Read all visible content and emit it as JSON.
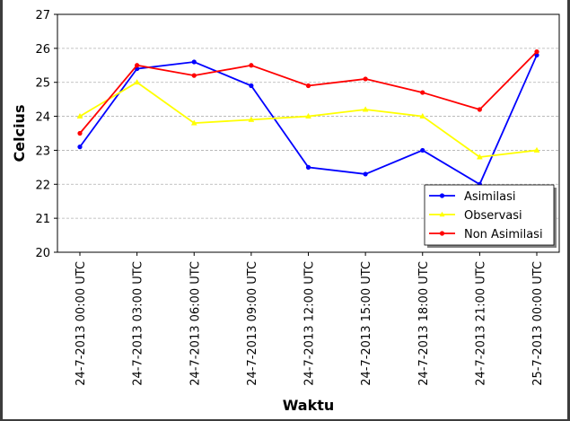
{
  "chart_data": {
    "type": "line",
    "title": "",
    "xlabel": "Waktu",
    "ylabel": "Celcius",
    "categories": [
      "24-7-2013 00:00 UTC",
      "24-7-2013 03:00 UTC",
      "24-7-2013 06:00 UTC",
      "24-7-2013 09:00 UTC",
      "24-7-2013 12:00 UTC",
      "24-7-2013 15:00 UTC",
      "24-7-2013 18:00 UTC",
      "24-7-2013 21:00 UTC",
      "25-7-2013 00:00 UTC"
    ],
    "ylim": [
      20,
      27
    ],
    "yticks": [
      20,
      21,
      22,
      23,
      24,
      25,
      26,
      27
    ],
    "grid": "horizontal dashed",
    "legend_position": "lower-right",
    "series": [
      {
        "name": "Asimilasi",
        "color": "#0000ff",
        "marker": "circle",
        "values": [
          23.1,
          25.4,
          25.6,
          24.9,
          22.5,
          22.3,
          23.0,
          22.0,
          25.8
        ]
      },
      {
        "name": "Observasi",
        "color": "#ffff00",
        "marker": "triangle",
        "values": [
          24.0,
          25.0,
          23.8,
          23.9,
          24.0,
          24.2,
          24.0,
          22.8,
          23.0
        ]
      },
      {
        "name": "Non Asimilasi",
        "color": "#ff0000",
        "marker": "circle",
        "values": [
          23.5,
          25.5,
          25.2,
          25.5,
          24.9,
          25.1,
          24.7,
          24.2,
          25.9
        ]
      }
    ]
  }
}
